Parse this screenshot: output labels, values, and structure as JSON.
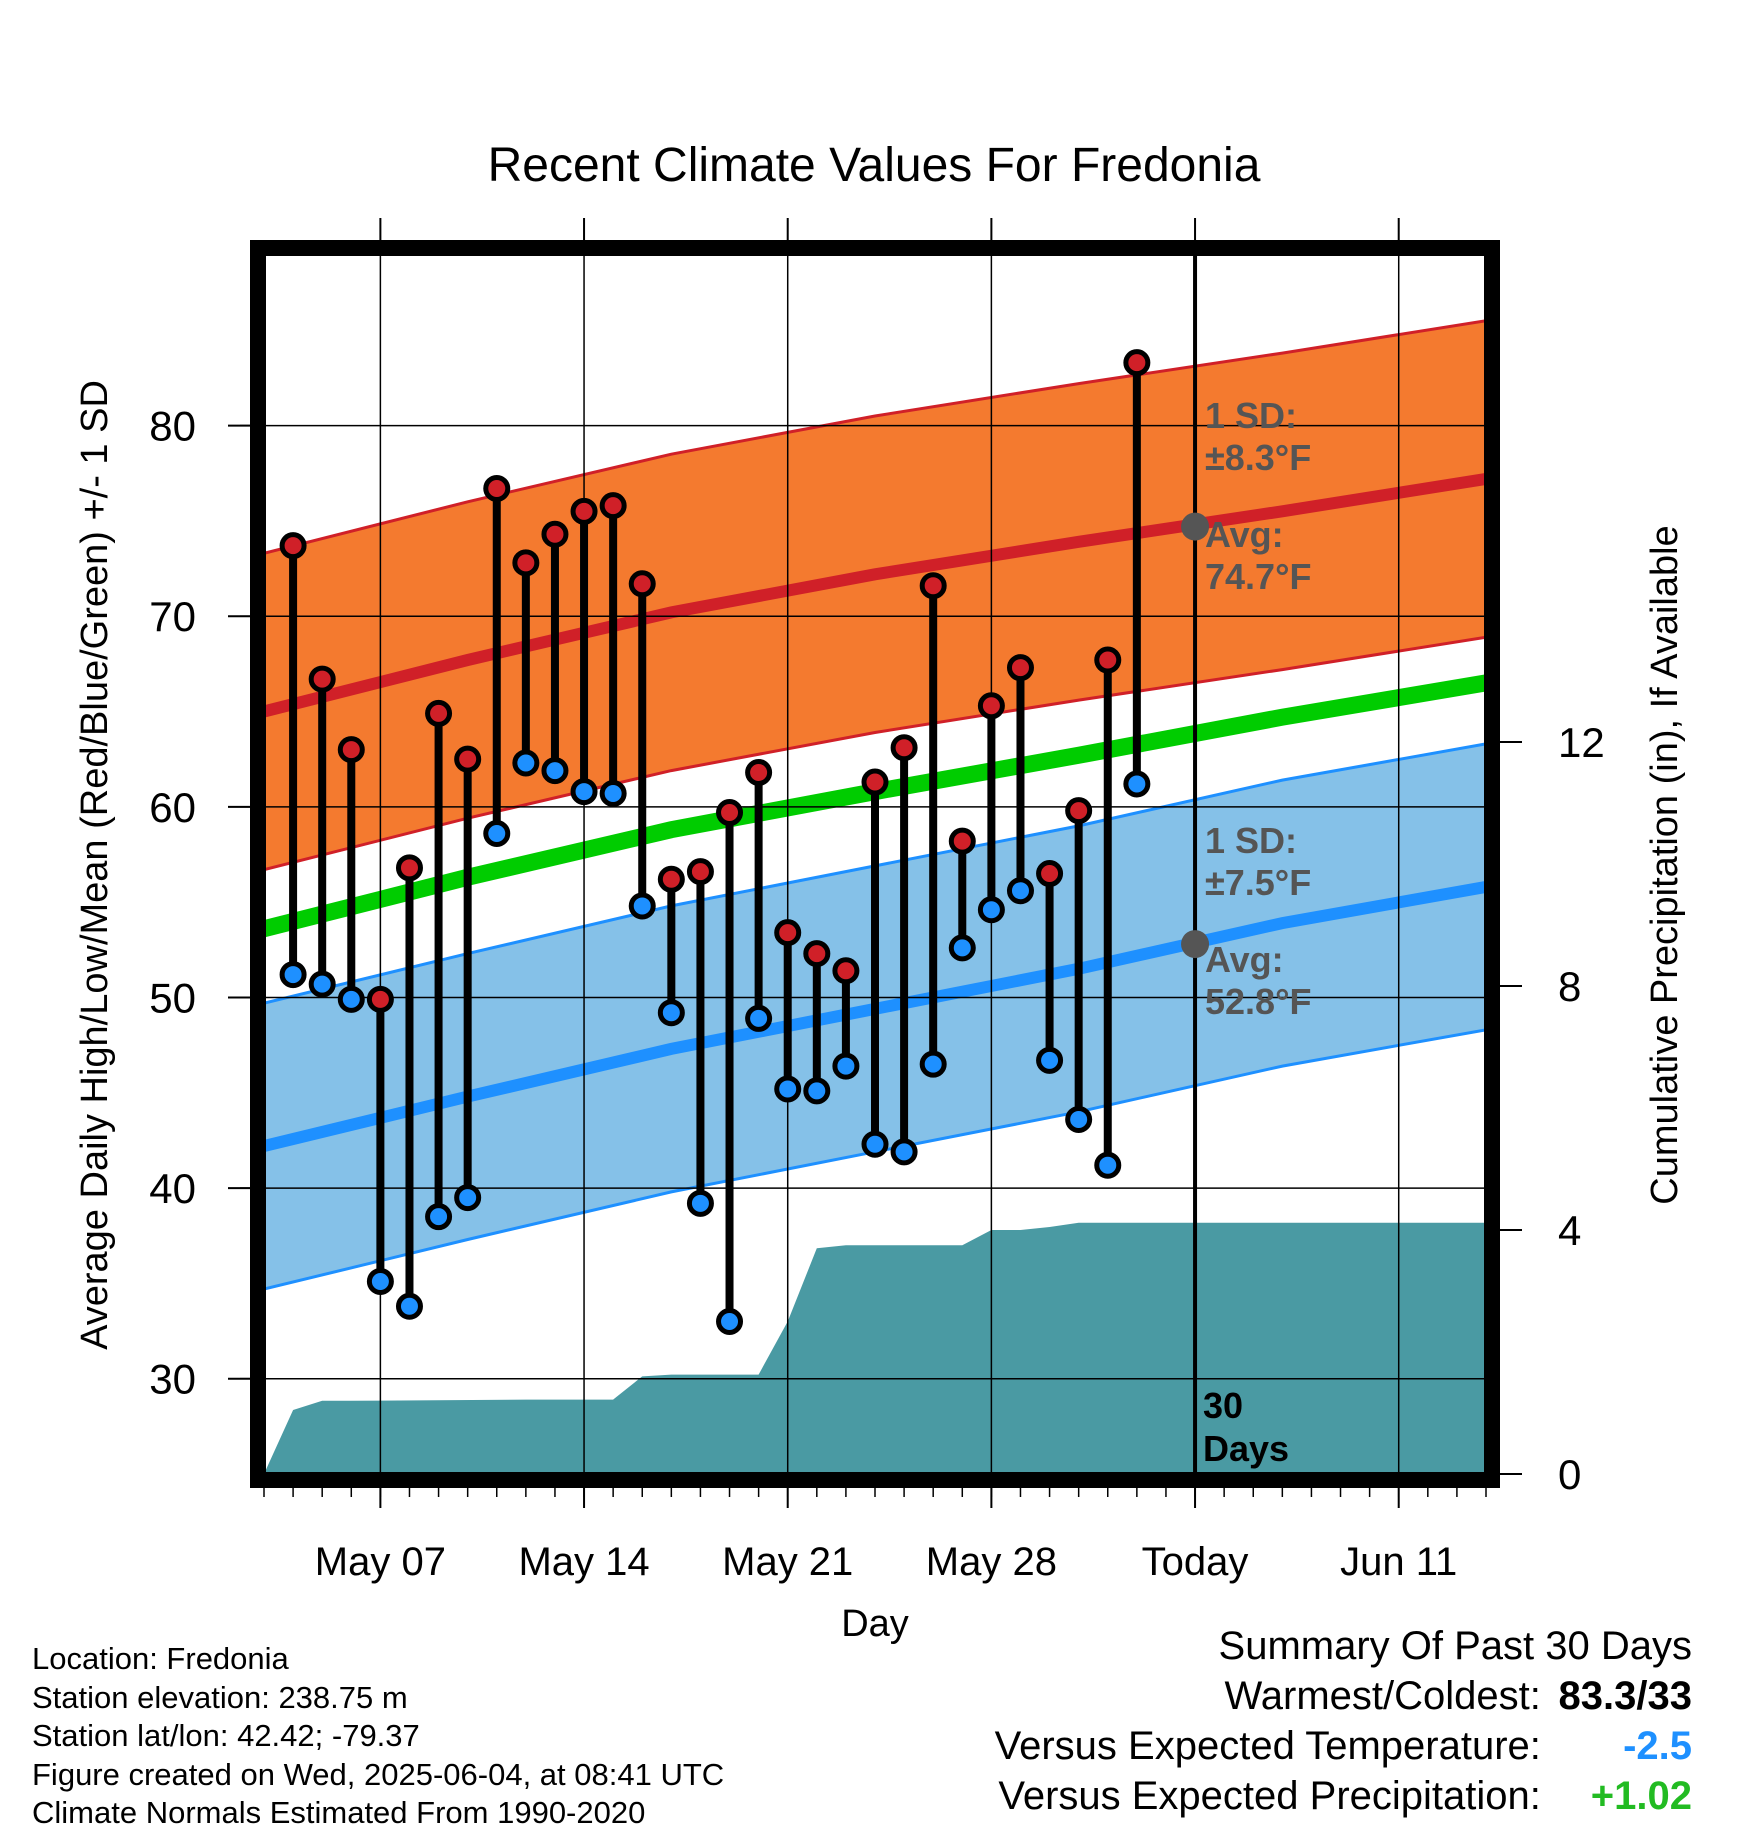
{
  "chart_data": {
    "type": "line",
    "title": "Recent Climate Values For Fredonia",
    "xlabel": "Day",
    "ylabel": "Average Daily High/Low/Mean (Red/Blue/Green) +/- 1 SD",
    "y2label": "Cumulative Precipitation (in), If Available",
    "xlim": [
      "2025-05-03",
      "2025-06-14"
    ],
    "ylim": [
      25,
      89
    ],
    "y2lim": [
      0,
      20
    ],
    "x_ticks": [
      {
        "date": "2025-05-07",
        "label": "May 07"
      },
      {
        "date": "2025-05-14",
        "label": "May 14"
      },
      {
        "date": "2025-05-21",
        "label": "May 21"
      },
      {
        "date": "2025-05-28",
        "label": "May 28"
      },
      {
        "date": "2025-06-04",
        "label": "Today"
      },
      {
        "date": "2025-06-11",
        "label": "Jun 11"
      }
    ],
    "y_ticks": [
      30,
      40,
      50,
      60,
      70,
      80
    ],
    "y2_ticks": [
      0,
      4,
      8,
      12
    ],
    "grid": true,
    "today": "2025-06-04",
    "daily": {
      "dates": [
        "2025-05-04",
        "2025-05-05",
        "2025-05-06",
        "2025-05-07",
        "2025-05-08",
        "2025-05-09",
        "2025-05-10",
        "2025-05-11",
        "2025-05-12",
        "2025-05-13",
        "2025-05-14",
        "2025-05-15",
        "2025-05-16",
        "2025-05-17",
        "2025-05-18",
        "2025-05-19",
        "2025-05-20",
        "2025-05-21",
        "2025-05-22",
        "2025-05-23",
        "2025-05-24",
        "2025-05-25",
        "2025-05-26",
        "2025-05-27",
        "2025-05-28",
        "2025-05-29",
        "2025-05-30",
        "2025-05-31",
        "2025-06-01",
        "2025-06-02",
        "2025-06-03"
      ],
      "high": [
        73.7,
        66.7,
        63.0,
        49.9,
        56.8,
        64.9,
        62.5,
        76.7,
        72.8,
        74.3,
        75.5,
        75.8,
        71.7,
        56.2,
        56.6,
        59.7,
        61.8,
        53.4,
        52.3,
        51.4,
        61.3,
        63.1,
        71.6,
        58.2,
        65.3,
        67.3,
        56.5,
        59.8,
        67.7,
        83.3,
        null
      ],
      "low": [
        51.2,
        50.7,
        49.9,
        35.1,
        33.8,
        38.5,
        39.5,
        58.6,
        62.3,
        61.9,
        60.8,
        60.7,
        54.8,
        49.2,
        39.2,
        33.0,
        48.9,
        45.2,
        45.1,
        46.4,
        42.3,
        41.9,
        46.5,
        52.6,
        54.6,
        55.6,
        46.7,
        43.6,
        41.2,
        61.2,
        null
      ]
    },
    "normals": {
      "dates": [
        "2025-05-03",
        "2025-05-10",
        "2025-05-17",
        "2025-05-24",
        "2025-05-31",
        "2025-06-07",
        "2025-06-14"
      ],
      "avg_high": [
        65.0,
        67.7,
        70.2,
        72.2,
        73.9,
        75.5,
        77.2
      ],
      "avg_low": [
        42.2,
        44.8,
        47.3,
        49.4,
        51.5,
        53.9,
        55.8
      ],
      "avg_mean": [
        53.6,
        56.3,
        58.8,
        60.8,
        62.7,
        64.7,
        66.5
      ],
      "high_sd": 8.3,
      "low_sd": 7.5
    },
    "precip": {
      "dates": [
        "2025-05-03",
        "2025-05-04",
        "2025-05-05",
        "2025-05-06",
        "2025-05-12",
        "2025-05-15",
        "2025-05-16",
        "2025-05-17",
        "2025-05-20",
        "2025-05-21",
        "2025-05-22",
        "2025-05-23",
        "2025-05-26",
        "2025-05-27",
        "2025-05-28",
        "2025-05-29",
        "2025-05-30",
        "2025-05-31",
        "2025-06-01",
        "2025-06-14"
      ],
      "cumulative": [
        0.0,
        1.05,
        1.2,
        1.2,
        1.22,
        1.22,
        1.6,
        1.63,
        1.63,
        2.5,
        3.7,
        3.75,
        3.75,
        3.75,
        4.0,
        4.0,
        4.05,
        4.12,
        4.12,
        4.12
      ]
    },
    "annotations": {
      "high_sd_label": "1 SD:",
      "high_sd_value": "±8.3°F",
      "high_avg_label": "Avg:",
      "high_avg_value": "74.7°F",
      "high_avg_at_today": 74.7,
      "low_sd_label": "1 SD:",
      "low_sd_value": "±7.5°F",
      "low_avg_label": "Avg:",
      "low_avg_value": "52.8°F",
      "low_avg_at_today": 52.8,
      "days_number": "30",
      "days_word": "Days"
    },
    "colors": {
      "high_band": "#f47a2f",
      "high_line": "#d02028",
      "low_band": "#85c1e8",
      "low_line": "#1e90ff",
      "mean_line": "#00cc00",
      "precip": "#4a9aa3",
      "high_point": "#d02028",
      "low_point": "#1e90ff",
      "annotation": "#555555"
    }
  },
  "info": {
    "location": "Location: Fredonia",
    "elevation": "Station elevation: 238.75 m",
    "latlon": "Station lat/lon: 42.42; -79.37",
    "created": "Figure created on Wed, 2025-06-04, at 08:41 UTC",
    "normals": "Climate Normals Estimated From 1990-2020"
  },
  "summary": {
    "heading": "Summary Of Past 30 Days",
    "warm_cold_label": "Warmest/Coldest:",
    "warm_cold_value": "83.3/33",
    "temp_label": "Versus Expected Temperature:",
    "temp_value": "-2.5",
    "temp_color": "#1e90ff",
    "precip_label": "Versus Expected Precipitation:",
    "precip_value": "+1.02",
    "precip_color": "#22bb22"
  }
}
